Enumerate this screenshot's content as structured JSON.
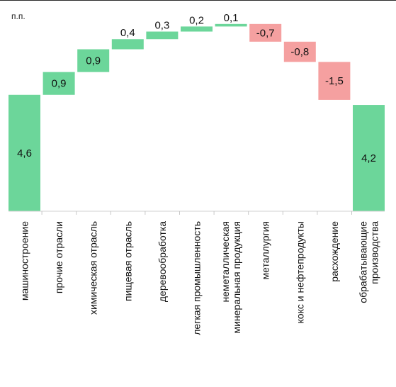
{
  "chart_data": {
    "type": "waterfall",
    "unit": "п.п.",
    "categories": [
      [
        "машиностроение"
      ],
      [
        "прочие отрасли"
      ],
      [
        "химическая отрасль"
      ],
      [
        "пищевая отрасль"
      ],
      [
        "деревообработка"
      ],
      [
        "легкая промышленность"
      ],
      [
        "неметаллическая",
        "минеральная продукция"
      ],
      [
        "металлургия"
      ],
      [
        "кокс и нефтепродукты"
      ],
      [
        "расхождение"
      ],
      [
        "обрабатывающие",
        "производства"
      ]
    ],
    "values": [
      4.6,
      0.9,
      0.9,
      0.4,
      0.3,
      0.2,
      0.1,
      -0.7,
      -0.8,
      -1.5,
      4.2
    ],
    "labels": [
      "4,6",
      "0,9",
      "0,9",
      "0,4",
      "0,3",
      "0,2",
      "0,1",
      "-0,7",
      "-0,8",
      "-1,5",
      "4,2"
    ],
    "bar_kinds": [
      "total",
      "delta",
      "delta",
      "delta",
      "delta",
      "delta",
      "delta",
      "delta",
      "delta",
      "delta",
      "total"
    ],
    "colors": {
      "positive": "#6cd69a",
      "negative": "#f5a0a0",
      "total": "#6cd69a"
    },
    "grid": false,
    "legend": "none"
  }
}
